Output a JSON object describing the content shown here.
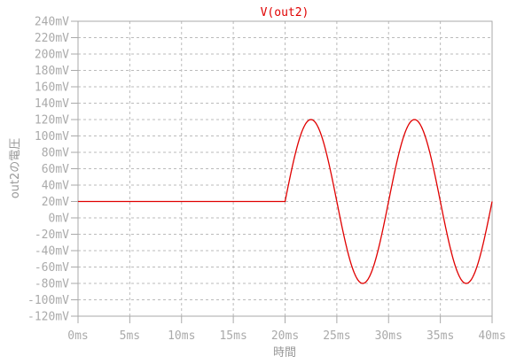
{
  "chart_data": {
    "type": "line",
    "title": "V(out2)",
    "xlabel": "時間",
    "ylabel": "out2の電圧",
    "xlim": [
      0,
      40
    ],
    "ylim": [
      -120,
      240
    ],
    "x_ticks": [
      "0ms",
      "5ms",
      "10ms",
      "15ms",
      "20ms",
      "25ms",
      "30ms",
      "35ms",
      "40ms"
    ],
    "y_ticks": [
      "240mV",
      "220mV",
      "200mV",
      "180mV",
      "160mV",
      "140mV",
      "120mV",
      "100mV",
      "80mV",
      "60mV",
      "40mV",
      "20mV",
      "0mV",
      "-20mV",
      "-40mV",
      "-60mV",
      "-80mV",
      "-100mV",
      "-120mV"
    ],
    "grid": true,
    "series": [
      {
        "color": "#e00000",
        "x_unit": "ms",
        "y_unit": "mV",
        "points": [
          [
            0,
            20
          ],
          [
            20,
            20
          ],
          [
            21.25,
            90.7
          ],
          [
            22.5,
            120
          ],
          [
            23.75,
            90.7
          ],
          [
            25,
            20
          ],
          [
            26.25,
            -50.7
          ],
          [
            27.5,
            -80
          ],
          [
            28.75,
            -50.7
          ],
          [
            30,
            20
          ],
          [
            31.25,
            90.7
          ],
          [
            32.5,
            120
          ],
          [
            33.75,
            90.7
          ],
          [
            35,
            20
          ],
          [
            36.25,
            -50.7
          ],
          [
            37.5,
            -80
          ],
          [
            38.75,
            -50.7
          ],
          [
            40,
            20
          ]
        ],
        "description_values": {
          "dc_level_before_20ms": 20,
          "offset": 20,
          "amplitude": 100,
          "period_ms": 10,
          "start_ms": 20
        }
      }
    ],
    "colors": {
      "axis": "#aaaaaa",
      "grid": "#bbbbbb",
      "title": "#e00000"
    }
  }
}
